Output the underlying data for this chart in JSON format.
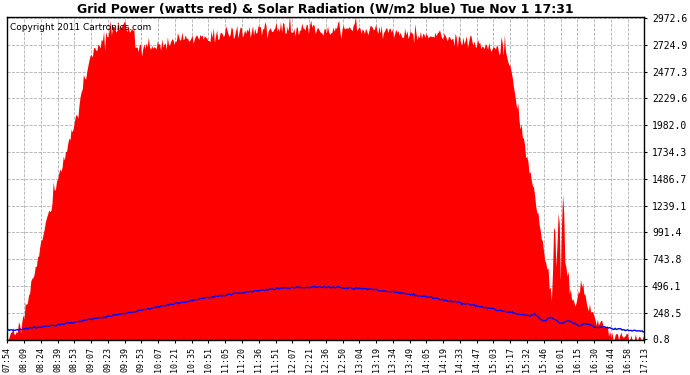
{
  "title": "Grid Power (watts red) & Solar Radiation (W/m2 blue) Tue Nov 1 17:31",
  "copyright": "Copyright 2011 Cartronics.com",
  "yticks": [
    0.8,
    248.5,
    496.1,
    743.8,
    991.4,
    1239.1,
    1486.7,
    1734.3,
    1982.0,
    2229.6,
    2477.3,
    2724.9,
    2972.6
  ],
  "ymax": 2972.6,
  "ymin": 0.8,
  "bg_color": "#ffffff",
  "plot_bg": "#ffffff",
  "grid_color": "#b0b0b0",
  "fill_color": "#ff0000",
  "line_color": "#0000ff",
  "xtick_labels": [
    "07:54",
    "08:09",
    "08:24",
    "08:39",
    "08:53",
    "09:07",
    "09:23",
    "09:39",
    "09:53",
    "10:07",
    "10:21",
    "10:35",
    "10:51",
    "11:05",
    "11:20",
    "11:36",
    "11:51",
    "12:07",
    "12:21",
    "12:36",
    "12:50",
    "13:04",
    "13:19",
    "13:34",
    "13:49",
    "14:05",
    "14:19",
    "14:33",
    "14:47",
    "15:03",
    "15:17",
    "15:32",
    "15:46",
    "16:01",
    "16:15",
    "16:30",
    "16:44",
    "16:58",
    "17:13"
  ],
  "figwidth": 6.9,
  "figheight": 3.75,
  "dpi": 100
}
